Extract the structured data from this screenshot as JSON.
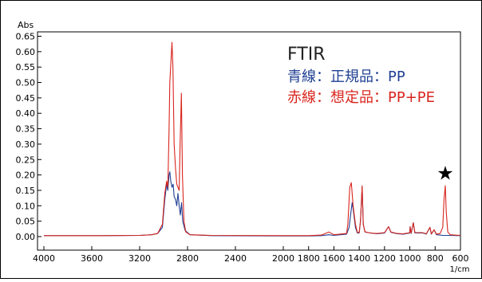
{
  "chart_data": {
    "type": "line",
    "xlabel": "1/cm",
    "ylabel": "Abs",
    "xlim": [
      4000,
      600
    ],
    "ylim": [
      -0.02,
      0.66
    ],
    "x_ticks": [
      "4000",
      "3600",
      "3200",
      "2800",
      "2400",
      "2000",
      "1800",
      "1600",
      "1400",
      "1200",
      "1000",
      "800",
      "600"
    ],
    "y_ticks": [
      "0.00",
      "0.05",
      "0.10",
      "0.15",
      "0.20",
      "0.25",
      "0.30",
      "0.35",
      "0.40",
      "0.45",
      "0.50",
      "0.55",
      "0.60",
      "0.65"
    ],
    "grid": false,
    "legend_position": "top-right",
    "annotation": {
      "title": "FTIR",
      "line1": "青線：正規品：PP",
      "line2": "赤線：想定品：PP+PE",
      "marker": "★",
      "marker_x": 720,
      "marker_y": 0.205
    },
    "series": [
      {
        "color": "#1f3f93",
        "points": [
          [
            4000,
            0.003
          ],
          [
            3500,
            0.003
          ],
          [
            3200,
            0.004
          ],
          [
            3100,
            0.006
          ],
          [
            3050,
            0.01
          ],
          [
            3010,
            0.03
          ],
          [
            2990,
            0.12
          ],
          [
            2975,
            0.17
          ],
          [
            2965,
            0.15
          ],
          [
            2955,
            0.2
          ],
          [
            2948,
            0.21
          ],
          [
            2940,
            0.18
          ],
          [
            2930,
            0.16
          ],
          [
            2920,
            0.17
          ],
          [
            2912,
            0.13
          ],
          [
            2900,
            0.12
          ],
          [
            2890,
            0.1
          ],
          [
            2880,
            0.14
          ],
          [
            2870,
            0.1
          ],
          [
            2860,
            0.07
          ],
          [
            2850,
            0.11
          ],
          [
            2840,
            0.05
          ],
          [
            2820,
            0.02
          ],
          [
            2780,
            0.006
          ],
          [
            2600,
            0.003
          ],
          [
            2000,
            0.002
          ],
          [
            1800,
            0.002
          ],
          [
            1700,
            0.003
          ],
          [
            1640,
            0.006
          ],
          [
            1600,
            0.004
          ],
          [
            1500,
            0.008
          ],
          [
            1480,
            0.03
          ],
          [
            1465,
            0.08
          ],
          [
            1456,
            0.11
          ],
          [
            1448,
            0.09
          ],
          [
            1430,
            0.03
          ],
          [
            1415,
            0.012
          ],
          [
            1400,
            0.012
          ],
          [
            1390,
            0.05
          ],
          [
            1377,
            0.16
          ],
          [
            1368,
            0.04
          ],
          [
            1355,
            0.015
          ],
          [
            1330,
            0.013
          ],
          [
            1300,
            0.011
          ],
          [
            1260,
            0.009
          ],
          [
            1200,
            0.012
          ],
          [
            1168,
            0.032
          ],
          [
            1150,
            0.014
          ],
          [
            1100,
            0.009
          ],
          [
            1050,
            0.008
          ],
          [
            1000,
            0.012
          ],
          [
            998,
            0.032
          ],
          [
            990,
            0.01
          ],
          [
            973,
            0.045
          ],
          [
            960,
            0.012
          ],
          [
            940,
            0.012
          ],
          [
            900,
            0.012
          ],
          [
            870,
            0.008
          ],
          [
            841,
            0.03
          ],
          [
            830,
            0.008
          ],
          [
            808,
            0.022
          ],
          [
            790,
            0.006
          ],
          [
            760,
            0.005
          ],
          [
            740,
            0.004
          ],
          [
            700,
            0.004
          ],
          [
            600,
            0.003
          ]
        ]
      },
      {
        "color": "#d9251d",
        "points": [
          [
            4000,
            0.003
          ],
          [
            3500,
            0.003
          ],
          [
            3200,
            0.004
          ],
          [
            3100,
            0.006
          ],
          [
            3050,
            0.01
          ],
          [
            3010,
            0.04
          ],
          [
            2990,
            0.14
          ],
          [
            2975,
            0.18
          ],
          [
            2965,
            0.16
          ],
          [
            2955,
            0.34
          ],
          [
            2948,
            0.5
          ],
          [
            2930,
            0.63
          ],
          [
            2922,
            0.55
          ],
          [
            2912,
            0.3
          ],
          [
            2900,
            0.22
          ],
          [
            2890,
            0.17
          ],
          [
            2870,
            0.15
          ],
          [
            2862,
            0.3
          ],
          [
            2851,
            0.465
          ],
          [
            2843,
            0.2
          ],
          [
            2830,
            0.05
          ],
          [
            2815,
            0.015
          ],
          [
            2780,
            0.006
          ],
          [
            2600,
            0.004
          ],
          [
            2000,
            0.003
          ],
          [
            1800,
            0.003
          ],
          [
            1700,
            0.005
          ],
          [
            1640,
            0.015
          ],
          [
            1600,
            0.006
          ],
          [
            1500,
            0.01
          ],
          [
            1490,
            0.04
          ],
          [
            1475,
            0.16
          ],
          [
            1463,
            0.175
          ],
          [
            1456,
            0.14
          ],
          [
            1448,
            0.1
          ],
          [
            1430,
            0.04
          ],
          [
            1415,
            0.014
          ],
          [
            1400,
            0.013
          ],
          [
            1390,
            0.05
          ],
          [
            1377,
            0.165
          ],
          [
            1368,
            0.04
          ],
          [
            1355,
            0.016
          ],
          [
            1330,
            0.013
          ],
          [
            1300,
            0.011
          ],
          [
            1260,
            0.01
          ],
          [
            1200,
            0.013
          ],
          [
            1168,
            0.032
          ],
          [
            1150,
            0.015
          ],
          [
            1100,
            0.01
          ],
          [
            1050,
            0.009
          ],
          [
            1000,
            0.013
          ],
          [
            998,
            0.032
          ],
          [
            990,
            0.011
          ],
          [
            973,
            0.045
          ],
          [
            960,
            0.013
          ],
          [
            940,
            0.013
          ],
          [
            900,
            0.013
          ],
          [
            870,
            0.009
          ],
          [
            841,
            0.03
          ],
          [
            830,
            0.009
          ],
          [
            808,
            0.022
          ],
          [
            790,
            0.008
          ],
          [
            760,
            0.01
          ],
          [
            740,
            0.03
          ],
          [
            730,
            0.12
          ],
          [
            720,
            0.165
          ],
          [
            712,
            0.08
          ],
          [
            700,
            0.015
          ],
          [
            680,
            0.006
          ],
          [
            600,
            0.004
          ]
        ]
      }
    ]
  }
}
